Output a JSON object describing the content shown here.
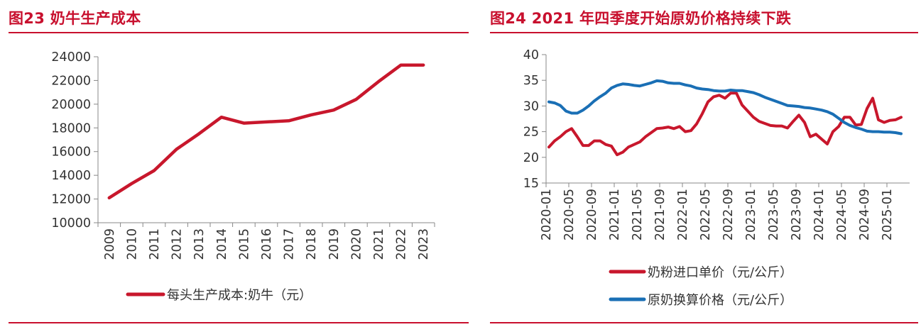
{
  "figures": [
    {
      "title": "图23  奶牛生产成本"
    },
    {
      "title": "图24  2021 年四季度开始原奶价格持续下跌"
    }
  ],
  "colors": {
    "title_red": "#c8102e",
    "series_red": "#c8172c",
    "series_blue": "#1a6fb5",
    "axis": "#888888"
  },
  "chart_data": [
    {
      "type": "line",
      "title": "",
      "xlabel": "",
      "ylabel": "",
      "ylim": [
        10000,
        24000
      ],
      "yticks": [
        10000,
        12000,
        14000,
        16000,
        18000,
        20000,
        22000,
        24000
      ],
      "categories": [
        "2009",
        "2010",
        "2011",
        "2012",
        "2013",
        "2014",
        "2015",
        "2016",
        "2017",
        "2018",
        "2019",
        "2020",
        "2021",
        "2022",
        "2023"
      ],
      "series": [
        {
          "name": "每头生产成本:奶牛（元）",
          "color": "#c8172c",
          "values": [
            12100,
            13300,
            14400,
            16200,
            17500,
            18900,
            18400,
            18500,
            18600,
            19100,
            19500,
            20400,
            21900,
            23300,
            23300
          ]
        }
      ],
      "legend": "bottom",
      "grid": false
    },
    {
      "type": "line",
      "title": "",
      "xlabel": "",
      "ylabel": "",
      "ylim": [
        15,
        40
      ],
      "yticks": [
        15,
        20,
        25,
        30,
        35,
        40
      ],
      "xticks": [
        "2020-01",
        "2020-05",
        "2020-09",
        "2021-01",
        "2021-05",
        "2021-09",
        "2022-01",
        "2022-05",
        "2022-09",
        "2023-01",
        "2023-05",
        "2023-09",
        "2024-01",
        "2024-05",
        "2024-09",
        "2025-01"
      ],
      "x_start": "2020-01",
      "x_end": "2025-04",
      "series": [
        {
          "name": "奶粉进口单价（元/公斤）",
          "color": "#c8172c",
          "points": [
            [
              "2020-01",
              22.0
            ],
            [
              "2020-02",
              23.2
            ],
            [
              "2020-03",
              24.0
            ],
            [
              "2020-04",
              25.0
            ],
            [
              "2020-05",
              25.6
            ],
            [
              "2020-06",
              24.0
            ],
            [
              "2020-07",
              22.3
            ],
            [
              "2020-08",
              22.3
            ],
            [
              "2020-09",
              23.2
            ],
            [
              "2020-10",
              23.2
            ],
            [
              "2020-11",
              22.5
            ],
            [
              "2020-12",
              22.2
            ],
            [
              "2021-01",
              20.5
            ],
            [
              "2021-02",
              21.0
            ],
            [
              "2021-03",
              22.0
            ],
            [
              "2021-04",
              22.5
            ],
            [
              "2021-05",
              23.0
            ],
            [
              "2021-06",
              24.0
            ],
            [
              "2021-07",
              24.8
            ],
            [
              "2021-08",
              25.6
            ],
            [
              "2021-09",
              25.7
            ],
            [
              "2021-10",
              25.9
            ],
            [
              "2021-11",
              25.6
            ],
            [
              "2021-12",
              26.0
            ],
            [
              "2022-01",
              25.0
            ],
            [
              "2022-02",
              25.2
            ],
            [
              "2022-03",
              26.5
            ],
            [
              "2022-04",
              28.5
            ],
            [
              "2022-05",
              30.8
            ],
            [
              "2022-06",
              31.8
            ],
            [
              "2022-07",
              32.1
            ],
            [
              "2022-08",
              31.5
            ],
            [
              "2022-09",
              32.5
            ],
            [
              "2022-10",
              32.5
            ],
            [
              "2022-11",
              30.2
            ],
            [
              "2022-12",
              29.0
            ],
            [
              "2023-01",
              27.8
            ],
            [
              "2023-02",
              27.0
            ],
            [
              "2023-03",
              26.6
            ],
            [
              "2023-04",
              26.2
            ],
            [
              "2023-05",
              26.1
            ],
            [
              "2023-06",
              26.1
            ],
            [
              "2023-07",
              25.7
            ],
            [
              "2023-08",
              27.0
            ],
            [
              "2023-09",
              28.2
            ],
            [
              "2023-10",
              26.8
            ],
            [
              "2023-11",
              24.0
            ],
            [
              "2023-12",
              24.5
            ],
            [
              "2023-13",
              23.0
            ]
          ],
          "values_tail": [
            [
              "2024-02",
              22.6
            ],
            [
              "2024-03",
              25.0
            ],
            [
              "2024-04",
              26.0
            ],
            [
              "2024-05",
              27.8
            ],
            [
              "2024-06",
              27.8
            ],
            [
              "2024-07",
              26.3
            ],
            [
              "2024-08",
              26.4
            ],
            [
              "2024-09",
              29.5
            ],
            [
              "2024-10",
              31.5
            ],
            [
              "2024-11",
              27.3
            ],
            [
              "2024-12",
              26.8
            ],
            [
              "2025-01",
              27.2
            ],
            [
              "2025-02",
              27.3
            ],
            [
              "2025-03",
              27.8
            ]
          ]
        },
        {
          "name": "原奶换算价格（元/公斤）",
          "color": "#1a6fb5",
          "points": [
            [
              "2020-01",
              30.8
            ],
            [
              "2020-02",
              30.6
            ],
            [
              "2020-03",
              30.1
            ],
            [
              "2020-04",
              29.0
            ],
            [
              "2020-05",
              28.6
            ],
            [
              "2020-06",
              28.6
            ],
            [
              "2020-07",
              29.2
            ],
            [
              "2020-08",
              30.0
            ],
            [
              "2020-09",
              31.0
            ],
            [
              "2020-10",
              31.8
            ],
            [
              "2020-11",
              32.5
            ],
            [
              "2020-12",
              33.5
            ],
            [
              "2021-01",
              34.0
            ],
            [
              "2021-02",
              34.3
            ],
            [
              "2021-03",
              34.2
            ],
            [
              "2021-04",
              34.0
            ],
            [
              "2021-05",
              33.9
            ],
            [
              "2021-06",
              34.2
            ],
            [
              "2021-07",
              34.5
            ],
            [
              "2021-08",
              34.9
            ],
            [
              "2021-09",
              34.8
            ],
            [
              "2021-10",
              34.5
            ],
            [
              "2021-11",
              34.4
            ],
            [
              "2021-12",
              34.4
            ],
            [
              "2022-01",
              34.1
            ],
            [
              "2022-02",
              33.9
            ],
            [
              "2022-03",
              33.5
            ],
            [
              "2022-04",
              33.3
            ],
            [
              "2022-05",
              33.2
            ],
            [
              "2022-06",
              33.0
            ],
            [
              "2022-07",
              32.9
            ],
            [
              "2022-08",
              32.9
            ],
            [
              "2022-09",
              33.1
            ],
            [
              "2022-10",
              33.0
            ],
            [
              "2022-11",
              33.0
            ],
            [
              "2022-12",
              32.8
            ],
            [
              "2023-01",
              32.6
            ],
            [
              "2023-02",
              32.2
            ],
            [
              "2023-03",
              31.7
            ],
            [
              "2023-04",
              31.3
            ],
            [
              "2023-05",
              30.9
            ],
            [
              "2023-06",
              30.5
            ],
            [
              "2023-07",
              30.1
            ],
            [
              "2023-08",
              30.0
            ],
            [
              "2023-09",
              29.9
            ],
            [
              "2023-10",
              29.7
            ],
            [
              "2023-11",
              29.6
            ],
            [
              "2023-12",
              29.4
            ],
            [
              "2024-01",
              29.2
            ],
            [
              "2024-02",
              28.9
            ],
            [
              "2024-03",
              28.4
            ],
            [
              "2024-04",
              27.6
            ],
            [
              "2024-05",
              26.8
            ],
            [
              "2024-06",
              26.2
            ],
            [
              "2024-07",
              25.8
            ],
            [
              "2024-08",
              25.5
            ],
            [
              "2024-09",
              25.1
            ],
            [
              "2024-10",
              25.0
            ],
            [
              "2024-11",
              25.0
            ],
            [
              "2024-12",
              24.9
            ],
            [
              "2025-01",
              24.9
            ],
            [
              "2025-02",
              24.8
            ],
            [
              "2025-03",
              24.6
            ]
          ]
        }
      ],
      "legend": "bottom",
      "grid": false
    }
  ]
}
